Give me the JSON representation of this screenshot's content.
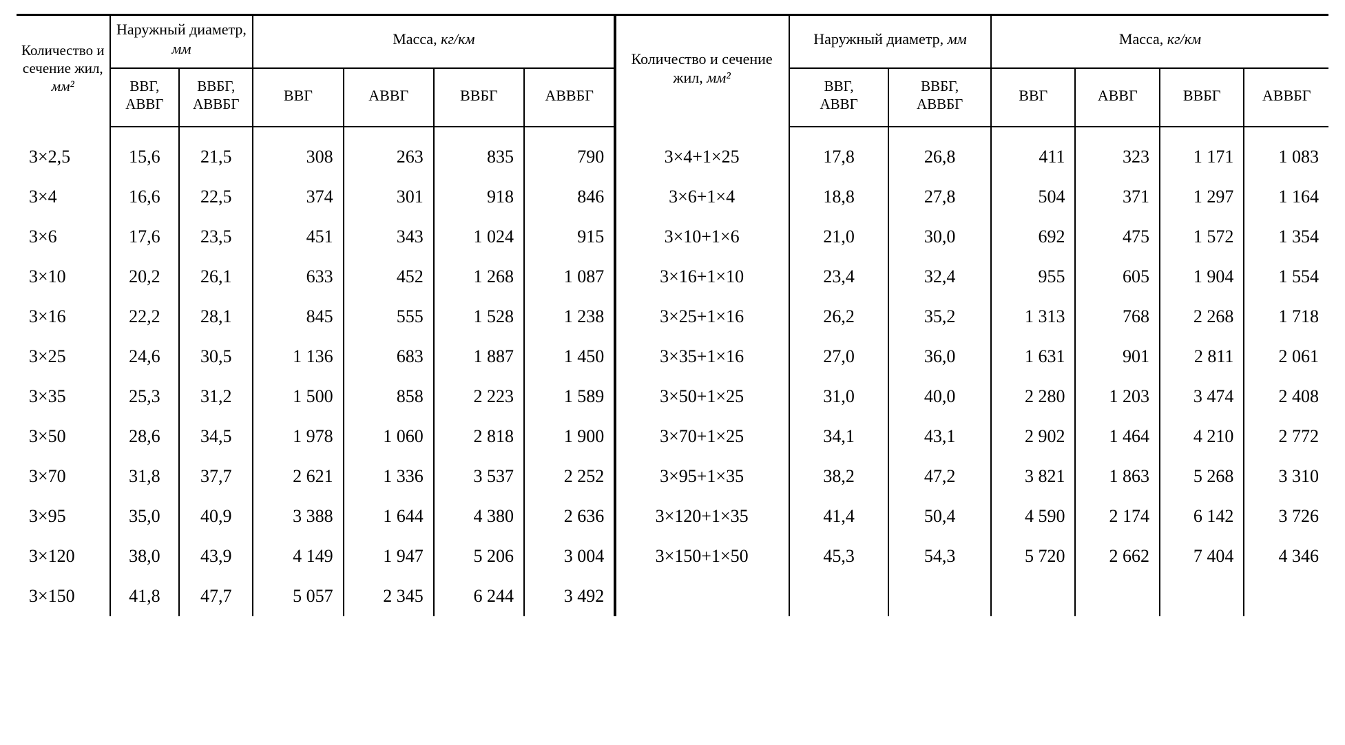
{
  "table": {
    "type": "table",
    "background_color": "#ffffff",
    "text_color": "#000000",
    "border_color": "#000000",
    "font_family": "Times New Roman",
    "header_fontsize_pt": 16,
    "body_fontsize_pt": 19,
    "headers": {
      "left": {
        "core_count": "Количе­ство и сечение жил, <span class=\"unit\">мм²</span>",
        "outer_diameter": "Наружный диаметр, <span class=\"unit\">мм</span>",
        "mass": "Масса, <span class=\"unit\">кг/км</span>",
        "sub_d1": "ВВГ,<br>АВВГ",
        "sub_d2": "ВВБГ,<br>АВВБГ",
        "sub_m1": "ВВГ",
        "sub_m2": "АВВГ",
        "sub_m3": "ВВБГ",
        "sub_m4": "АВВБГ"
      },
      "right": {
        "core_count": "Количество и сечение жил, <span class=\"unit\">мм²</span>",
        "outer_diameter": "Наружный диаметр, <span class=\"unit\">мм</span>",
        "mass": "Масса, <span class=\"unit\">кг/км</span>",
        "sub_d1": "ВВГ,<br>АВВГ",
        "sub_d2": "ВВБГ,<br>АВВБГ",
        "sub_m1": "ВВГ",
        "sub_m2": "АВВГ",
        "sub_m3": "ВВБГ",
        "sub_m4": "АВВБГ"
      }
    },
    "columns_left": [
      "core",
      "d_vvg",
      "d_vvbg",
      "m_vvg",
      "m_avvg",
      "m_vvbg",
      "m_avvbg"
    ],
    "columns_right": [
      "core",
      "d_vvg",
      "d_vvbg",
      "m_vvg",
      "m_avvg",
      "m_vvbg",
      "m_avvbg"
    ],
    "rows_left": [
      [
        "3×2,5",
        "15,6",
        "21,5",
        "308",
        "263",
        "835",
        "790"
      ],
      [
        "3×4",
        "16,6",
        "22,5",
        "374",
        "301",
        "918",
        "846"
      ],
      [
        "3×6",
        "17,6",
        "23,5",
        "451",
        "343",
        "1 024",
        "915"
      ],
      [
        "3×10",
        "20,2",
        "26,1",
        "633",
        "452",
        "1 268",
        "1 087"
      ],
      [
        "3×16",
        "22,2",
        "28,1",
        "845",
        "555",
        "1 528",
        "1 238"
      ],
      [
        "3×25",
        "24,6",
        "30,5",
        "1 136",
        "683",
        "1 887",
        "1 450"
      ],
      [
        "3×35",
        "25,3",
        "31,2",
        "1 500",
        "858",
        "2 223",
        "1 589"
      ],
      [
        "3×50",
        "28,6",
        "34,5",
        "1 978",
        "1 060",
        "2 818",
        "1 900"
      ],
      [
        "3×70",
        "31,8",
        "37,7",
        "2 621",
        "1 336",
        "3 537",
        "2 252"
      ],
      [
        "3×95",
        "35,0",
        "40,9",
        "3 388",
        "1 644",
        "4 380",
        "2 636"
      ],
      [
        "3×120",
        "38,0",
        "43,9",
        "4 149",
        "1 947",
        "5 206",
        "3 004"
      ],
      [
        "3×150",
        "41,8",
        "47,7",
        "5 057",
        "2 345",
        "6 244",
        "3 492"
      ]
    ],
    "rows_right": [
      [
        "3×4+1×25",
        "17,8",
        "26,8",
        "411",
        "323",
        "1 171",
        "1 083"
      ],
      [
        "3×6+1×4",
        "18,8",
        "27,8",
        "504",
        "371",
        "1 297",
        "1 164"
      ],
      [
        "3×10+1×6",
        "21,0",
        "30,0",
        "692",
        "475",
        "1 572",
        "1 354"
      ],
      [
        "3×16+1×10",
        "23,4",
        "32,4",
        "955",
        "605",
        "1 904",
        "1 554"
      ],
      [
        "3×25+1×16",
        "26,2",
        "35,2",
        "1 313",
        "768",
        "2 268",
        "1 718"
      ],
      [
        "3×35+1×16",
        "27,0",
        "36,0",
        "1 631",
        "901",
        "2 811",
        "2 061"
      ],
      [
        "3×50+1×25",
        "31,0",
        "40,0",
        "2 280",
        "1 203",
        "3 474",
        "2 408"
      ],
      [
        "3×70+1×25",
        "34,1",
        "43,1",
        "2 902",
        "1 464",
        "4 210",
        "2 772"
      ],
      [
        "3×95+1×35",
        "38,2",
        "47,2",
        "3 821",
        "1 863",
        "5 268",
        "3 310"
      ],
      [
        "3×120+1×35",
        "41,4",
        "50,4",
        "4 590",
        "2 174",
        "6 142",
        "3 726"
      ],
      [
        "3×150+1×50",
        "45,3",
        "54,3",
        "5 720",
        "2 662",
        "7 404",
        "4 346"
      ],
      [
        "",
        "",
        "",
        "",
        "",
        "",
        ""
      ]
    ],
    "column_align_left": [
      "al",
      "ac",
      "ac",
      "num",
      "num",
      "num",
      "num"
    ],
    "column_align_right": [
      "ac",
      "ac",
      "ac",
      "num",
      "num",
      "num",
      "num"
    ],
    "column_widths_pct": [
      6.2,
      4.6,
      4.9,
      6.0,
      6.0,
      6.0,
      6.0,
      11.6,
      6.6,
      6.8,
      5.6,
      5.6,
      5.6,
      5.6
    ]
  }
}
